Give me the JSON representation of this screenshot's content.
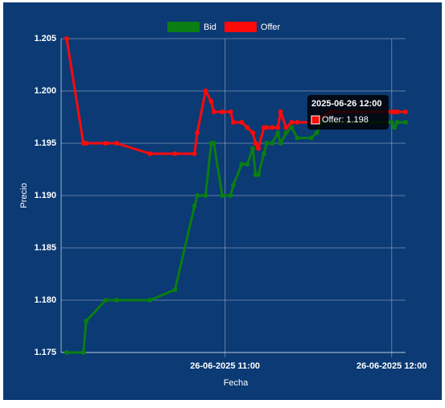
{
  "chart_data": {
    "type": "line",
    "x_label": "Fecha",
    "y_label": "Precio",
    "x": [
      "2025-06-26 10:03",
      "2025-06-26 10:09",
      "2025-06-26 10:10",
      "2025-06-26 10:17",
      "2025-06-26 10:21",
      "2025-06-26 10:33",
      "2025-06-26 10:42",
      "2025-06-26 10:49",
      "2025-06-26 10:50",
      "2025-06-26 10:53",
      "2025-06-26 10:55",
      "2025-06-26 10:56",
      "2025-06-26 10:59",
      "2025-06-26 11:02",
      "2025-06-26 11:03",
      "2025-06-26 11:06",
      "2025-06-26 11:08",
      "2025-06-26 11:10",
      "2025-06-26 11:11",
      "2025-06-26 11:12",
      "2025-06-26 11:14",
      "2025-06-26 11:15",
      "2025-06-26 11:17",
      "2025-06-26 11:19",
      "2025-06-26 11:20",
      "2025-06-26 11:22",
      "2025-06-26 11:24",
      "2025-06-26 11:26",
      "2025-06-26 11:31",
      "2025-06-26 11:33",
      "2025-06-26 11:35",
      "2025-06-26 11:38",
      "2025-06-26 12:00",
      "2025-06-26 12:01",
      "2025-06-26 12:02",
      "2025-06-26 12:05"
    ],
    "series": [
      {
        "name": "Bid",
        "color": "#0b7d12",
        "values": [
          1.175,
          1.175,
          1.178,
          1.18,
          1.18,
          1.18,
          1.181,
          1.189,
          1.19,
          1.19,
          1.195,
          1.195,
          1.19,
          1.19,
          1.191,
          1.193,
          1.193,
          1.1945,
          1.192,
          1.192,
          1.194,
          1.195,
          1.195,
          1.196,
          1.195,
          1.196,
          1.1965,
          1.1955,
          1.1955,
          1.196,
          1.197,
          1.197,
          1.197,
          1.1965,
          1.197,
          1.197
        ]
      },
      {
        "name": "Offer",
        "color": "#ff0a0a",
        "values": [
          1.205,
          1.195,
          1.195,
          1.195,
          1.195,
          1.194,
          1.194,
          1.194,
          1.196,
          1.2,
          1.199,
          1.198,
          1.198,
          1.198,
          1.197,
          1.197,
          1.1965,
          1.196,
          1.195,
          1.1945,
          1.1965,
          1.1965,
          1.1965,
          1.1965,
          1.198,
          1.1965,
          1.197,
          1.197,
          1.197,
          1.197,
          1.1975,
          1.198,
          1.198,
          1.198,
          1.198,
          1.198
        ]
      }
    ],
    "xlim": [
      "2025-06-26 10:01",
      "2025-06-26 12:05"
    ],
    "xticks": [
      {
        "value": "2025-06-26 11:00",
        "label": "26-06-2025 11:00"
      },
      {
        "value": "2025-06-26 12:00",
        "label": "26-06-2025 12:00"
      }
    ],
    "ylim": [
      1.175,
      1.205
    ],
    "yticks": [
      1.175,
      {
        "value": 1.18,
        "label": "1.180"
      },
      1.185,
      {
        "value": 1.19,
        "label": "1.190"
      },
      1.195,
      {
        "value": 1.2,
        "label": "1.200"
      },
      1.205
    ],
    "grid": true,
    "legend": "top",
    "tooltip": {
      "title": "2025-06-26 12:00",
      "label": "Offer: 1.198"
    }
  }
}
